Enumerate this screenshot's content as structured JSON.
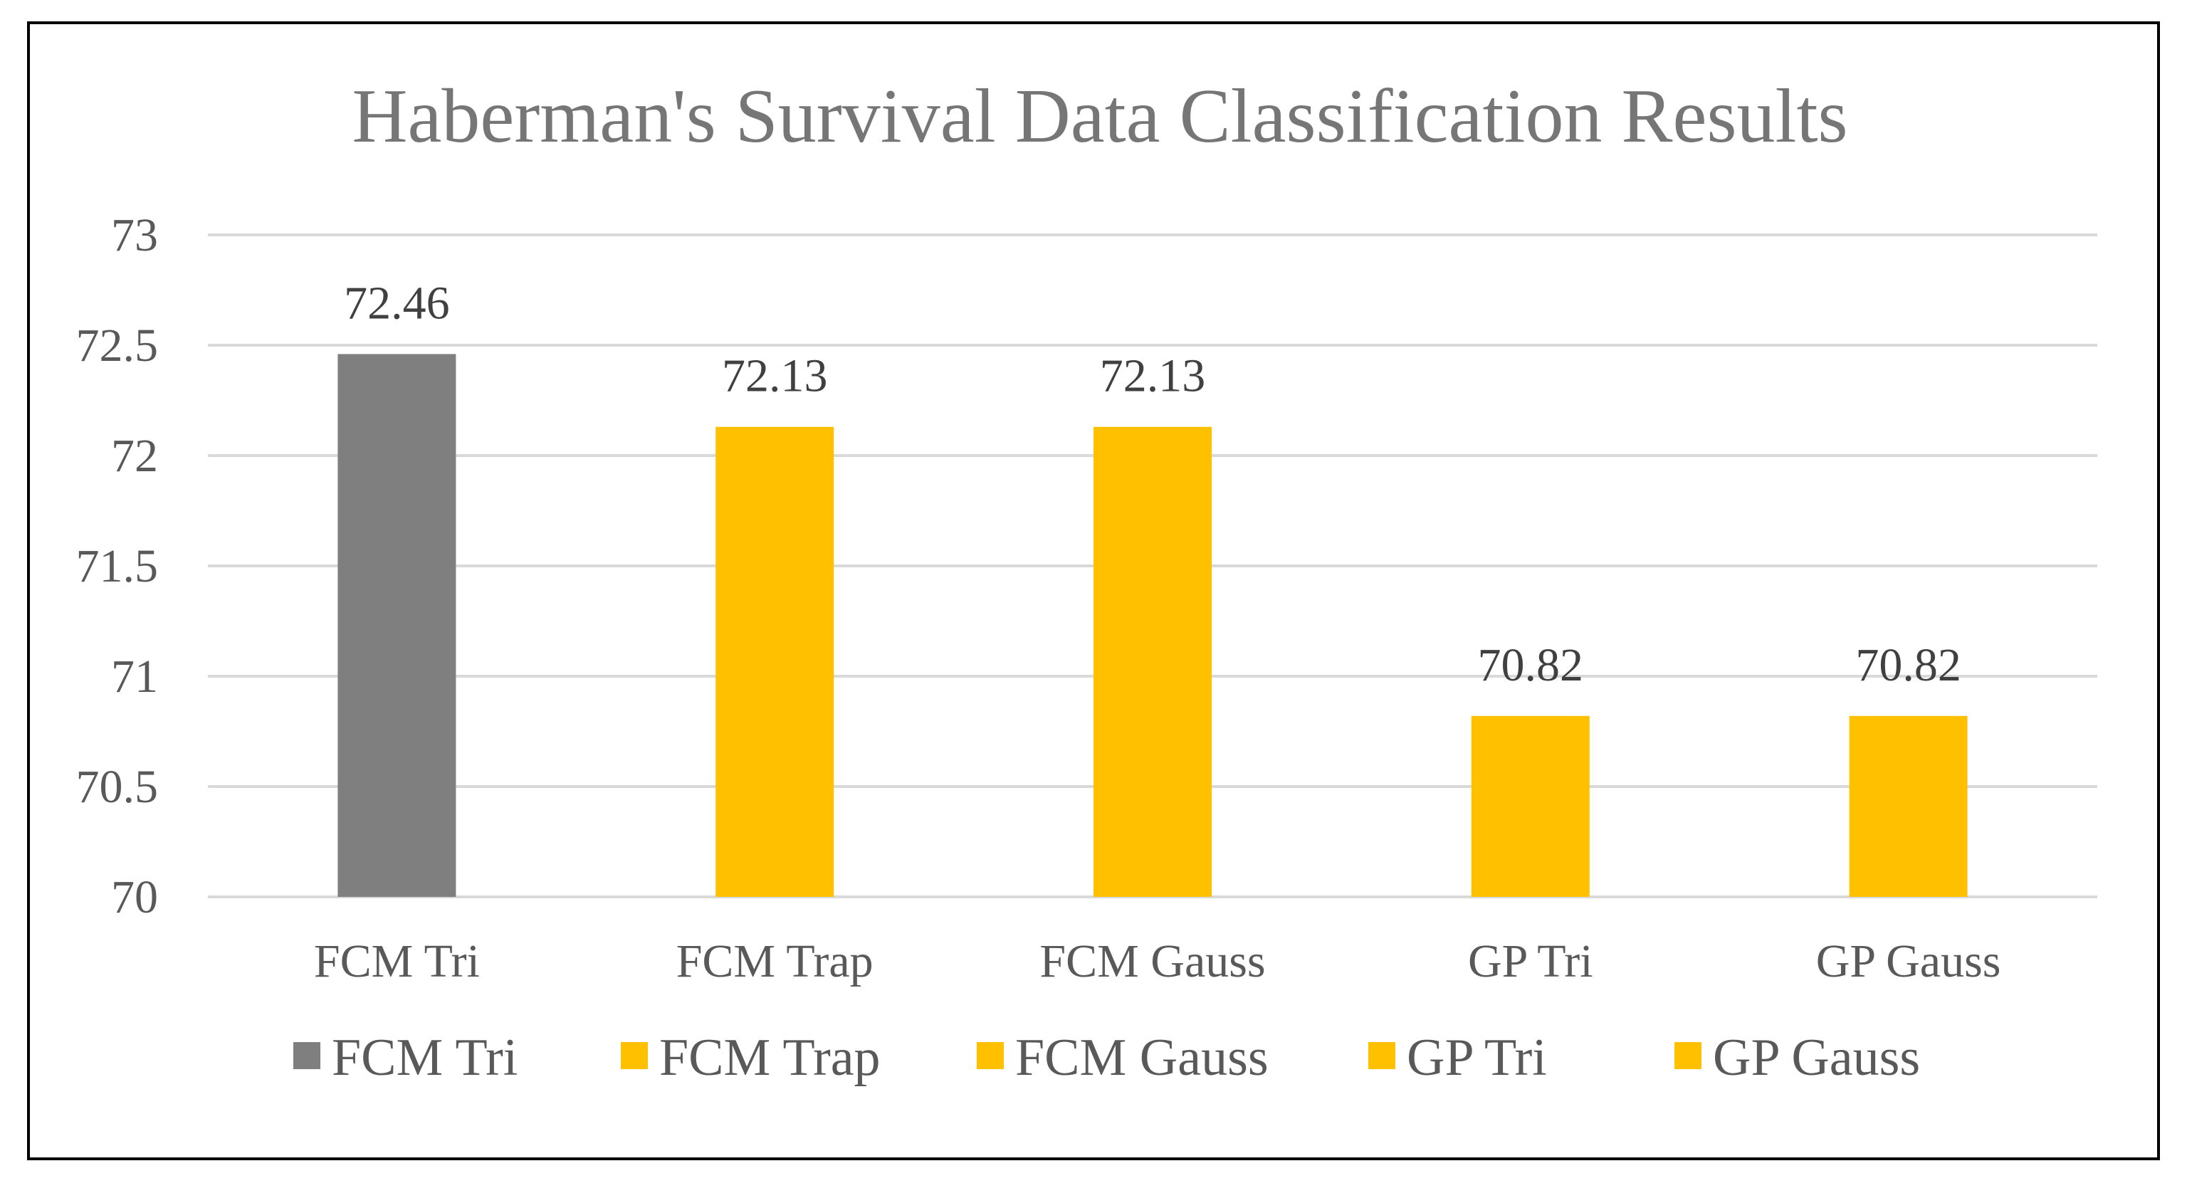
{
  "chart_data": {
    "type": "bar",
    "title": "Haberman's Survival Data Classification Results",
    "categories": [
      "FCM Tri",
      "FCM Trap",
      "FCM Gauss",
      "GP Tri",
      "GP Gauss"
    ],
    "values": [
      72.46,
      72.13,
      72.13,
      70.82,
      70.82
    ],
    "data_labels": [
      "72.46",
      "72.13",
      "72.13",
      "70.82",
      "70.82"
    ],
    "colors": [
      "#7f7f7f",
      "#ffc000",
      "#ffc000",
      "#ffc000",
      "#ffc000"
    ],
    "ylim": [
      70,
      73
    ],
    "yticks": [
      70,
      70.5,
      71,
      71.5,
      72,
      72.5,
      73
    ],
    "ytick_labels": [
      "70",
      "70.5",
      "71",
      "71.5",
      "72",
      "72.5",
      "73"
    ],
    "grid": true,
    "xlabel": "",
    "ylabel": "",
    "legend": {
      "position": "bottom",
      "entries": [
        {
          "label": "FCM Tri",
          "color": "#7f7f7f"
        },
        {
          "label": "FCM Trap",
          "color": "#ffc000"
        },
        {
          "label": "FCM Gauss",
          "color": "#ffc000"
        },
        {
          "label": "GP Tri",
          "color": "#ffc000"
        },
        {
          "label": "GP Gauss",
          "color": "#ffc000"
        }
      ]
    }
  }
}
